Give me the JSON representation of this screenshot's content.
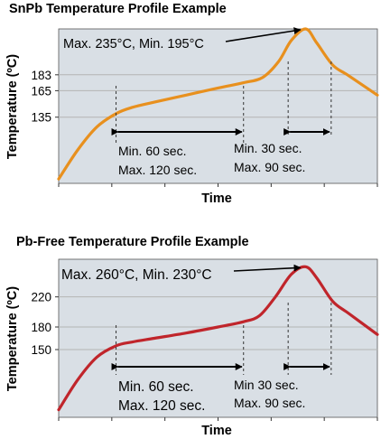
{
  "colors": {
    "plot_bg": "#d9dfe5",
    "grid": "#b4b4b4",
    "snpb_curve": "#e8901e",
    "pbfree_curve": "#c0252b",
    "text": "#000000"
  },
  "chart_data": [
    {
      "type": "line",
      "title": "SnPb Temperature Profile Example",
      "xlabel": "Time",
      "ylabel": "Temperature (ºC)",
      "y_ticks": [
        {
          "value": 135,
          "label": "135"
        },
        {
          "value": 165,
          "label": "165"
        },
        {
          "value": 183,
          "label": "183"
        }
      ],
      "ylim": [
        60,
        235
      ],
      "xlim": [
        0,
        10
      ],
      "grid": true,
      "series": [
        {
          "x": [
            0.0,
            0.6,
            1.2,
            1.8,
            2.3,
            3.0,
            4.0,
            5.0,
            5.8,
            6.4,
            6.9,
            7.3,
            7.75,
            8.1,
            8.6,
            9.1,
            10.0
          ],
          "y": [
            65,
            98,
            124,
            139,
            146,
            152,
            160,
            168,
            174,
            180,
            198,
            222,
            235,
            219,
            194,
            182,
            160
          ]
        }
      ],
      "annotations": {
        "peak": "Max. 235°C, Min. 195°C",
        "preheat_min": "Min. 60 sec.",
        "preheat_max": "Max. 120 sec.",
        "reflow_min": "Min. 30 sec.",
        "reflow_max": "Max. 90 sec."
      },
      "markers": {
        "preheat_window_x": [
          1.8,
          5.8
        ],
        "reflow_window_x": [
          7.2,
          8.55
        ],
        "peak_point": [
          7.75,
          235
        ]
      }
    },
    {
      "type": "line",
      "title": "Pb-Free Temperature Profile Example",
      "xlabel": "Time",
      "ylabel": "Temperature (ºC)",
      "y_ticks": [
        {
          "value": 150,
          "label": "150"
        },
        {
          "value": 180,
          "label": "180"
        },
        {
          "value": 220,
          "label": "220"
        }
      ],
      "ylim": [
        60,
        270
      ],
      "xlim": [
        0,
        10
      ],
      "grid": true,
      "series": [
        {
          "x": [
            0.0,
            0.6,
            1.2,
            1.8,
            2.3,
            3.0,
            4.0,
            5.0,
            5.8,
            6.3,
            6.8,
            7.3,
            7.75,
            8.1,
            8.6,
            9.1,
            10.0
          ],
          "y": [
            70,
            110,
            140,
            155,
            160,
            165,
            172,
            180,
            187,
            195,
            220,
            250,
            260,
            245,
            214,
            198,
            170
          ]
        }
      ],
      "annotations": {
        "peak": "Max. 260°C, Min. 230°C",
        "preheat_min": "Min. 60 sec.",
        "preheat_max": "Max. 120 sec.",
        "reflow_min": "Min 30 sec.",
        "reflow_max": "Max. 90 sec."
      },
      "markers": {
        "preheat_window_x": [
          1.8,
          5.8
        ],
        "reflow_window_x": [
          7.2,
          8.55
        ],
        "peak_point": [
          7.75,
          260
        ]
      }
    }
  ]
}
